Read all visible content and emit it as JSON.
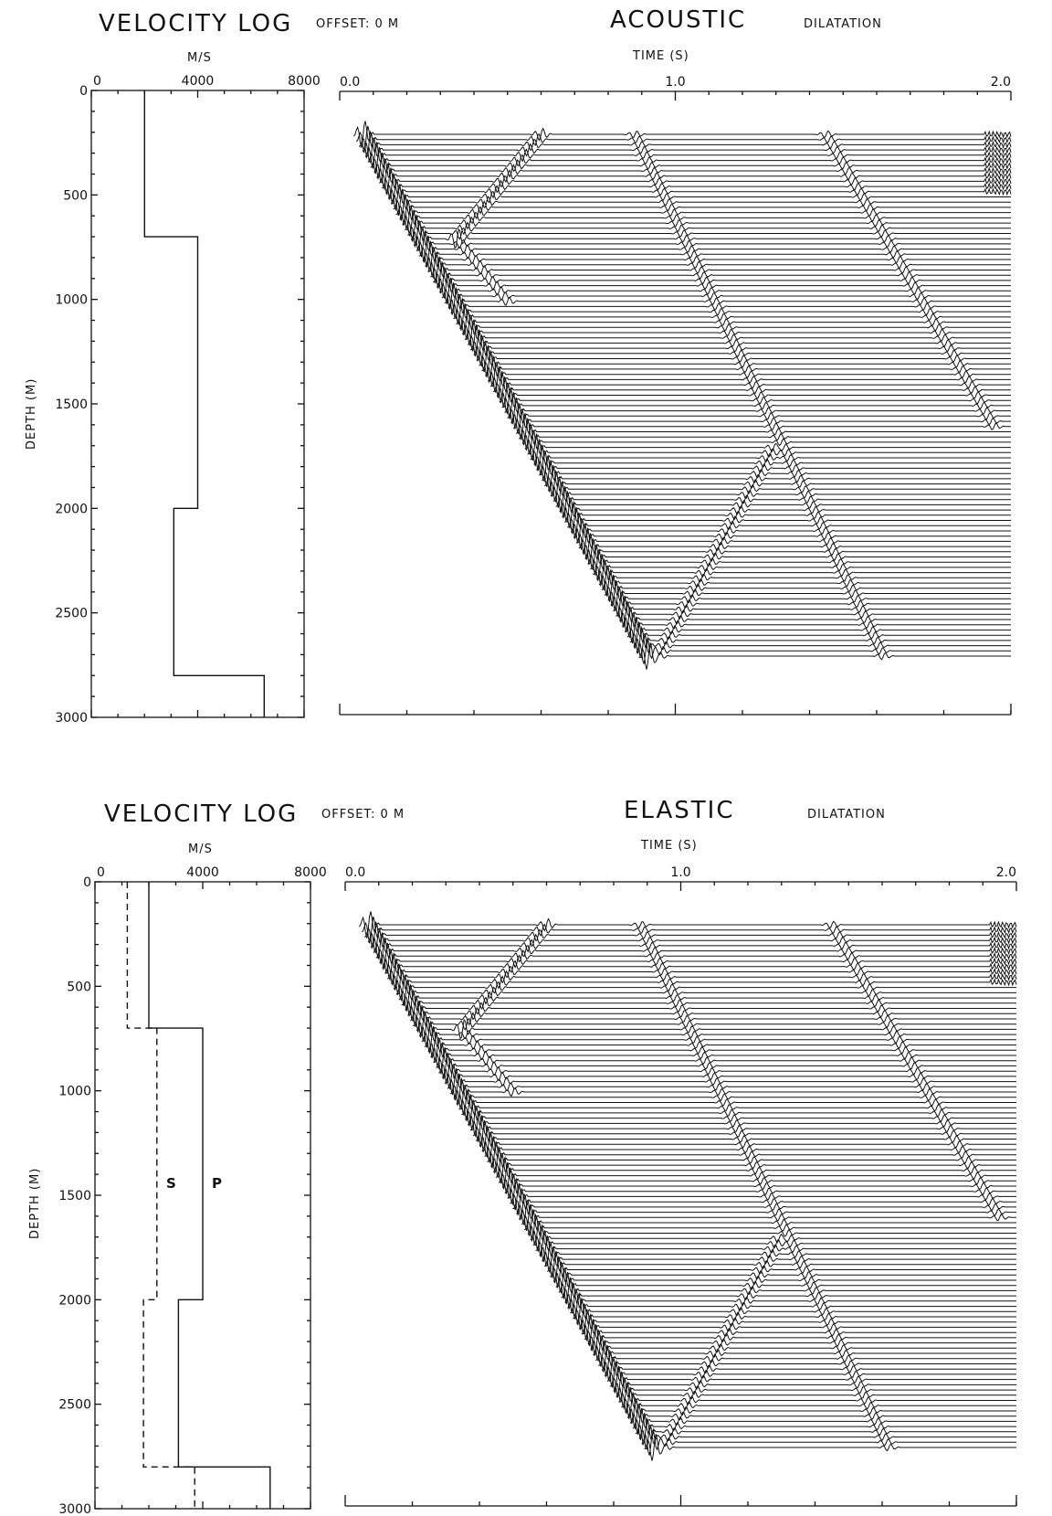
{
  "panels": [
    {
      "log_title": "VELOCITY LOG",
      "offset_label": "OFFSET: 0 M",
      "section_title": "ACOUSTIC",
      "component_label": "DILATATION",
      "log_unit": "M/S",
      "time_label": "TIME (S)",
      "depth_label": "DEPTH (M)"
    },
    {
      "log_title": "VELOCITY LOG",
      "offset_label": "OFFSET: 0 M",
      "section_title": "ELASTIC",
      "component_label": "DILATATION",
      "log_unit": "M/S",
      "time_label": "TIME (S)",
      "depth_label": "DEPTH (M)",
      "s_label": "S",
      "p_label": "P"
    }
  ],
  "chart_data": [
    {
      "type": "line",
      "title": "VELOCITY LOG",
      "xlabel": "M/S",
      "ylabel": "DEPTH (M)",
      "xlim": [
        0,
        8000
      ],
      "ylim": [
        3000,
        0
      ],
      "x_ticks": [
        "0",
        "4000",
        "8000"
      ],
      "y_ticks": [
        "0",
        "500",
        "1000",
        "1500",
        "2000",
        "2500",
        "3000"
      ],
      "series": [
        {
          "depth": [
            0,
            700,
            700,
            2000,
            2000,
            2800,
            2800,
            3000
          ],
          "velocity": [
            2000,
            2000,
            4000,
            4000,
            3100,
            3100,
            6500,
            6500
          ]
        }
      ]
    },
    {
      "type": "line",
      "title": "ACOUSTIC",
      "xlabel": "TIME (S)",
      "xlim": [
        0,
        2
      ],
      "x_ticks": [
        "0.0",
        "1.0",
        "2.0"
      ],
      "depth_range": [
        200,
        2700
      ],
      "trace_count": 101,
      "events": [
        {
          "t": [
            0.07,
            0.92
          ],
          "depth": [
            200,
            2700
          ]
        },
        {
          "t": [
            0.95,
            1.3,
            1.63
          ],
          "depth": [
            2700,
            1680,
            2700
          ]
        },
        {
          "t": [
            0.35,
            0.6
          ],
          "depth": [
            700,
            200
          ]
        },
        {
          "t": [
            0.35,
            0.5
          ],
          "depth": [
            700,
            1000
          ]
        },
        {
          "t": [
            0.88,
            1.62
          ],
          "depth": [
            200,
            2700
          ]
        },
        {
          "t": [
            1.45,
            1.95
          ],
          "depth": [
            200,
            1600
          ]
        }
      ]
    },
    {
      "type": "line",
      "title": "VELOCITY LOG",
      "xlabel": "M/S",
      "ylabel": "DEPTH (M)",
      "xlim": [
        0,
        8000
      ],
      "ylim": [
        3000,
        0
      ],
      "x_ticks": [
        "0",
        "4000",
        "8000"
      ],
      "y_ticks": [
        "0",
        "500",
        "1000",
        "1500",
        "2000",
        "2500",
        "3000"
      ],
      "series": [
        {
          "name": "P",
          "depth": [
            0,
            700,
            700,
            2000,
            2000,
            2800,
            2800,
            3000
          ],
          "velocity": [
            2000,
            2000,
            4000,
            4000,
            3100,
            3100,
            6500,
            6500
          ]
        },
        {
          "name": "S",
          "depth": [
            0,
            700,
            700,
            2000,
            2000,
            2800,
            2800,
            3000
          ],
          "velocity": [
            1200,
            1200,
            2300,
            2300,
            1800,
            1800,
            3700,
            3700
          ]
        }
      ]
    },
    {
      "type": "line",
      "title": "ELASTIC",
      "xlabel": "TIME (S)",
      "xlim": [
        0,
        2
      ],
      "x_ticks": [
        "0.0",
        "1.0",
        "2.0"
      ],
      "depth_range": [
        200,
        2700
      ],
      "trace_count": 101,
      "events": [
        {
          "t": [
            0.07,
            0.92
          ],
          "depth": [
            200,
            2700
          ]
        },
        {
          "t": [
            0.95,
            1.3,
            1.63
          ],
          "depth": [
            2700,
            1680,
            2700
          ]
        },
        {
          "t": [
            0.35,
            0.6
          ],
          "depth": [
            700,
            200
          ]
        },
        {
          "t": [
            0.35,
            0.5
          ],
          "depth": [
            700,
            1000
          ]
        },
        {
          "t": [
            0.88,
            1.62
          ],
          "depth": [
            200,
            2700
          ]
        },
        {
          "t": [
            1.45,
            1.95
          ],
          "depth": [
            200,
            1600
          ]
        }
      ]
    }
  ]
}
